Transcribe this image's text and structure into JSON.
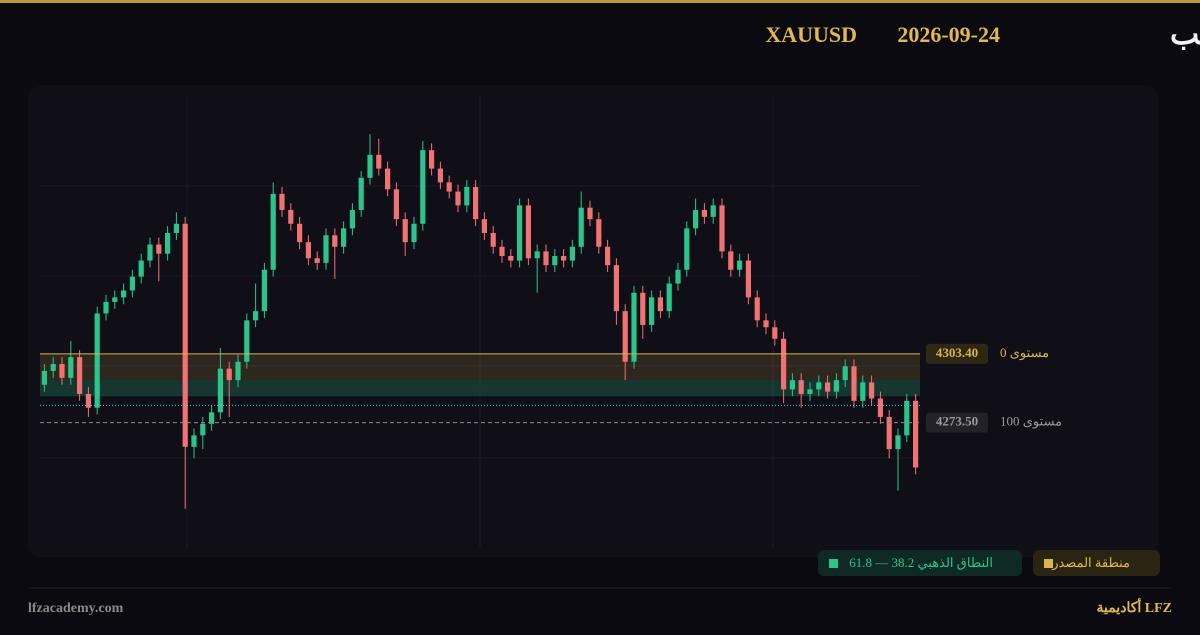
{
  "header": {
    "title": "تحليل الذهب",
    "date": "2026-09-24",
    "symbol": "XAUUSD"
  },
  "chart_data": {
    "type": "candlestick",
    "ylim": [
      4219,
      4416
    ],
    "up_color": "#2bc48a",
    "down_color": "#f07272",
    "open": [
      4290,
      4296,
      4299,
      4293,
      4302,
      4286,
      4280,
      4321,
      4326,
      4328,
      4331,
      4337,
      4344,
      4351,
      4347,
      4356,
      4360,
      4263,
      4268,
      4273,
      4278,
      4297,
      4292,
      4300,
      4318,
      4322,
      4340,
      4373,
      4366,
      4360,
      4352,
      4345,
      4343,
      4355,
      4350,
      4358,
      4366,
      4380,
      4390,
      4384,
      4375,
      4362,
      4352,
      4360,
      4392,
      4384,
      4378,
      4374,
      4368,
      4376,
      4362,
      4356,
      4350,
      4346,
      4344,
      4368,
      4345,
      4348,
      4342,
      4346,
      4344,
      4350,
      4367,
      4362,
      4350,
      4342,
      4322,
      4300,
      4330,
      4316,
      4328,
      4322,
      4334,
      4340,
      4358,
      4366,
      4363,
      4368,
      4348,
      4340,
      4344,
      4328,
      4318,
      4315,
      4310,
      4288,
      4292,
      4286,
      4288,
      4291,
      4287,
      4292,
      4298,
      4283,
      4291,
      4284,
      4276,
      4262,
      4268,
      4283
    ],
    "high": [
      4299,
      4302,
      4302,
      4309,
      4305,
      4289,
      4324,
      4329,
      4331,
      4334,
      4340,
      4347,
      4354,
      4354,
      4359,
      4365,
      4363,
      4271,
      4276,
      4281,
      4306,
      4300,
      4303,
      4321,
      4334,
      4343,
      4378,
      4376,
      4369,
      4363,
      4355,
      4348,
      4358,
      4358,
      4361,
      4369,
      4383,
      4399,
      4397,
      4387,
      4378,
      4365,
      4363,
      4396,
      4395,
      4387,
      4381,
      4377,
      4379,
      4379,
      4365,
      4359,
      4353,
      4349,
      4371,
      4371,
      4351,
      4351,
      4349,
      4349,
      4353,
      4374,
      4370,
      4365,
      4353,
      4345,
      4325,
      4333,
      4333,
      4331,
      4331,
      4337,
      4343,
      4361,
      4371,
      4369,
      4371,
      4371,
      4351,
      4347,
      4347,
      4331,
      4321,
      4318,
      4313,
      4295,
      4295,
      4291,
      4294,
      4294,
      4295,
      4301,
      4301,
      4294,
      4294,
      4287,
      4279,
      4271,
      4286,
      4286
    ],
    "low": [
      4287,
      4293,
      4290,
      4290,
      4283,
      4276,
      4277,
      4318,
      4323,
      4325,
      4328,
      4334,
      4341,
      4335,
      4344,
      4353,
      4236,
      4258,
      4262,
      4270,
      4275,
      4276,
      4289,
      4297,
      4315,
      4319,
      4337,
      4363,
      4357,
      4349,
      4342,
      4340,
      4340,
      4336,
      4347,
      4355,
      4363,
      4377,
      4381,
      4372,
      4359,
      4346,
      4349,
      4357,
      4381,
      4375,
      4371,
      4365,
      4365,
      4359,
      4353,
      4347,
      4343,
      4341,
      4341,
      4342,
      4330,
      4339,
      4339,
      4341,
      4341,
      4347,
      4359,
      4347,
      4339,
      4316,
      4292,
      4297,
      4310,
      4313,
      4319,
      4319,
      4331,
      4337,
      4355,
      4360,
      4360,
      4345,
      4337,
      4337,
      4325,
      4315,
      4312,
      4307,
      4282,
      4285,
      4280,
      4283,
      4285,
      4284,
      4284,
      4289,
      4280,
      4280,
      4281,
      4273,
      4258,
      4244,
      4265,
      4251
    ],
    "close": [
      4296,
      4299,
      4293,
      4302,
      4286,
      4280,
      4321,
      4326,
      4328,
      4331,
      4337,
      4344,
      4351,
      4347,
      4356,
      4360,
      4263,
      4268,
      4273,
      4278,
      4297,
      4292,
      4300,
      4318,
      4322,
      4340,
      4373,
      4366,
      4360,
      4352,
      4345,
      4343,
      4355,
      4350,
      4358,
      4366,
      4380,
      4390,
      4384,
      4375,
      4362,
      4352,
      4360,
      4392,
      4384,
      4378,
      4374,
      4368,
      4376,
      4362,
      4356,
      4350,
      4346,
      4344,
      4368,
      4345,
      4348,
      4342,
      4346,
      4344,
      4350,
      4367,
      4362,
      4350,
      4342,
      4322,
      4300,
      4330,
      4316,
      4328,
      4322,
      4334,
      4340,
      4358,
      4366,
      4363,
      4368,
      4348,
      4340,
      4344,
      4328,
      4318,
      4315,
      4310,
      4288,
      4292,
      4286,
      4288,
      4291,
      4287,
      4292,
      4298,
      4283,
      4291,
      4284,
      4276,
      4262,
      4268,
      4283,
      4254
    ],
    "source_zone": [
      4292,
      4303.4
    ],
    "golden_zone": [
      4285,
      4292
    ],
    "current_price": 4281,
    "levels": [
      {
        "name": "مستوى 0",
        "value": 4303.4,
        "label": "4303.40",
        "color": "#d8b64a",
        "style": "solid"
      },
      {
        "name": "مستوى 100",
        "value": 4273.5,
        "label": "4273.50",
        "color": "#8a8a8a",
        "style": "dashed"
      }
    ],
    "legend": {
      "golden": "النطاق الذهبي 38.2 — 61.8",
      "source": "منطقة المصدر"
    }
  },
  "footer": {
    "site": "lfzacademy.com",
    "brand": "أكاديمية LFZ"
  }
}
